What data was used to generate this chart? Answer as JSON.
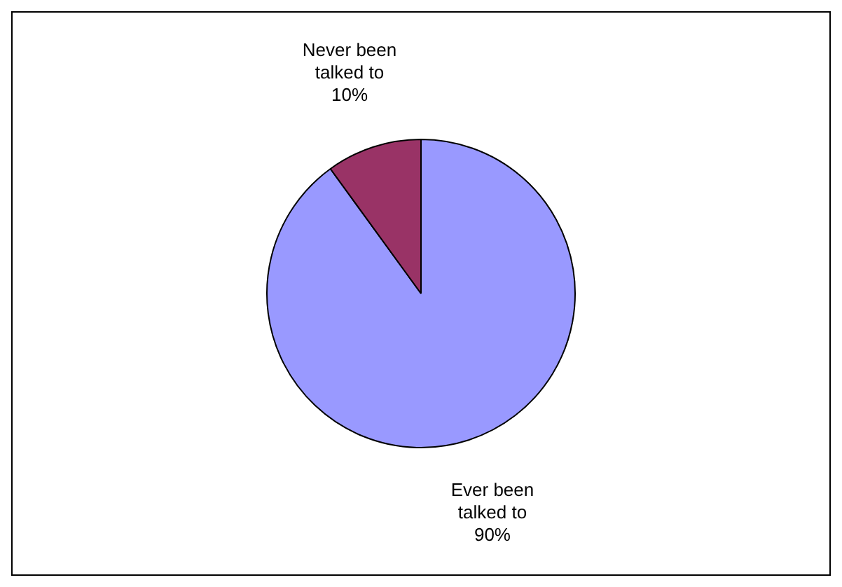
{
  "chart_data": {
    "type": "pie",
    "categories": [
      "Ever been talked to",
      "Never been talked to"
    ],
    "values": [
      90,
      10
    ],
    "value_labels": [
      "90%",
      "10%"
    ],
    "colors": [
      "#9999ff",
      "#993366"
    ],
    "legend": false
  }
}
